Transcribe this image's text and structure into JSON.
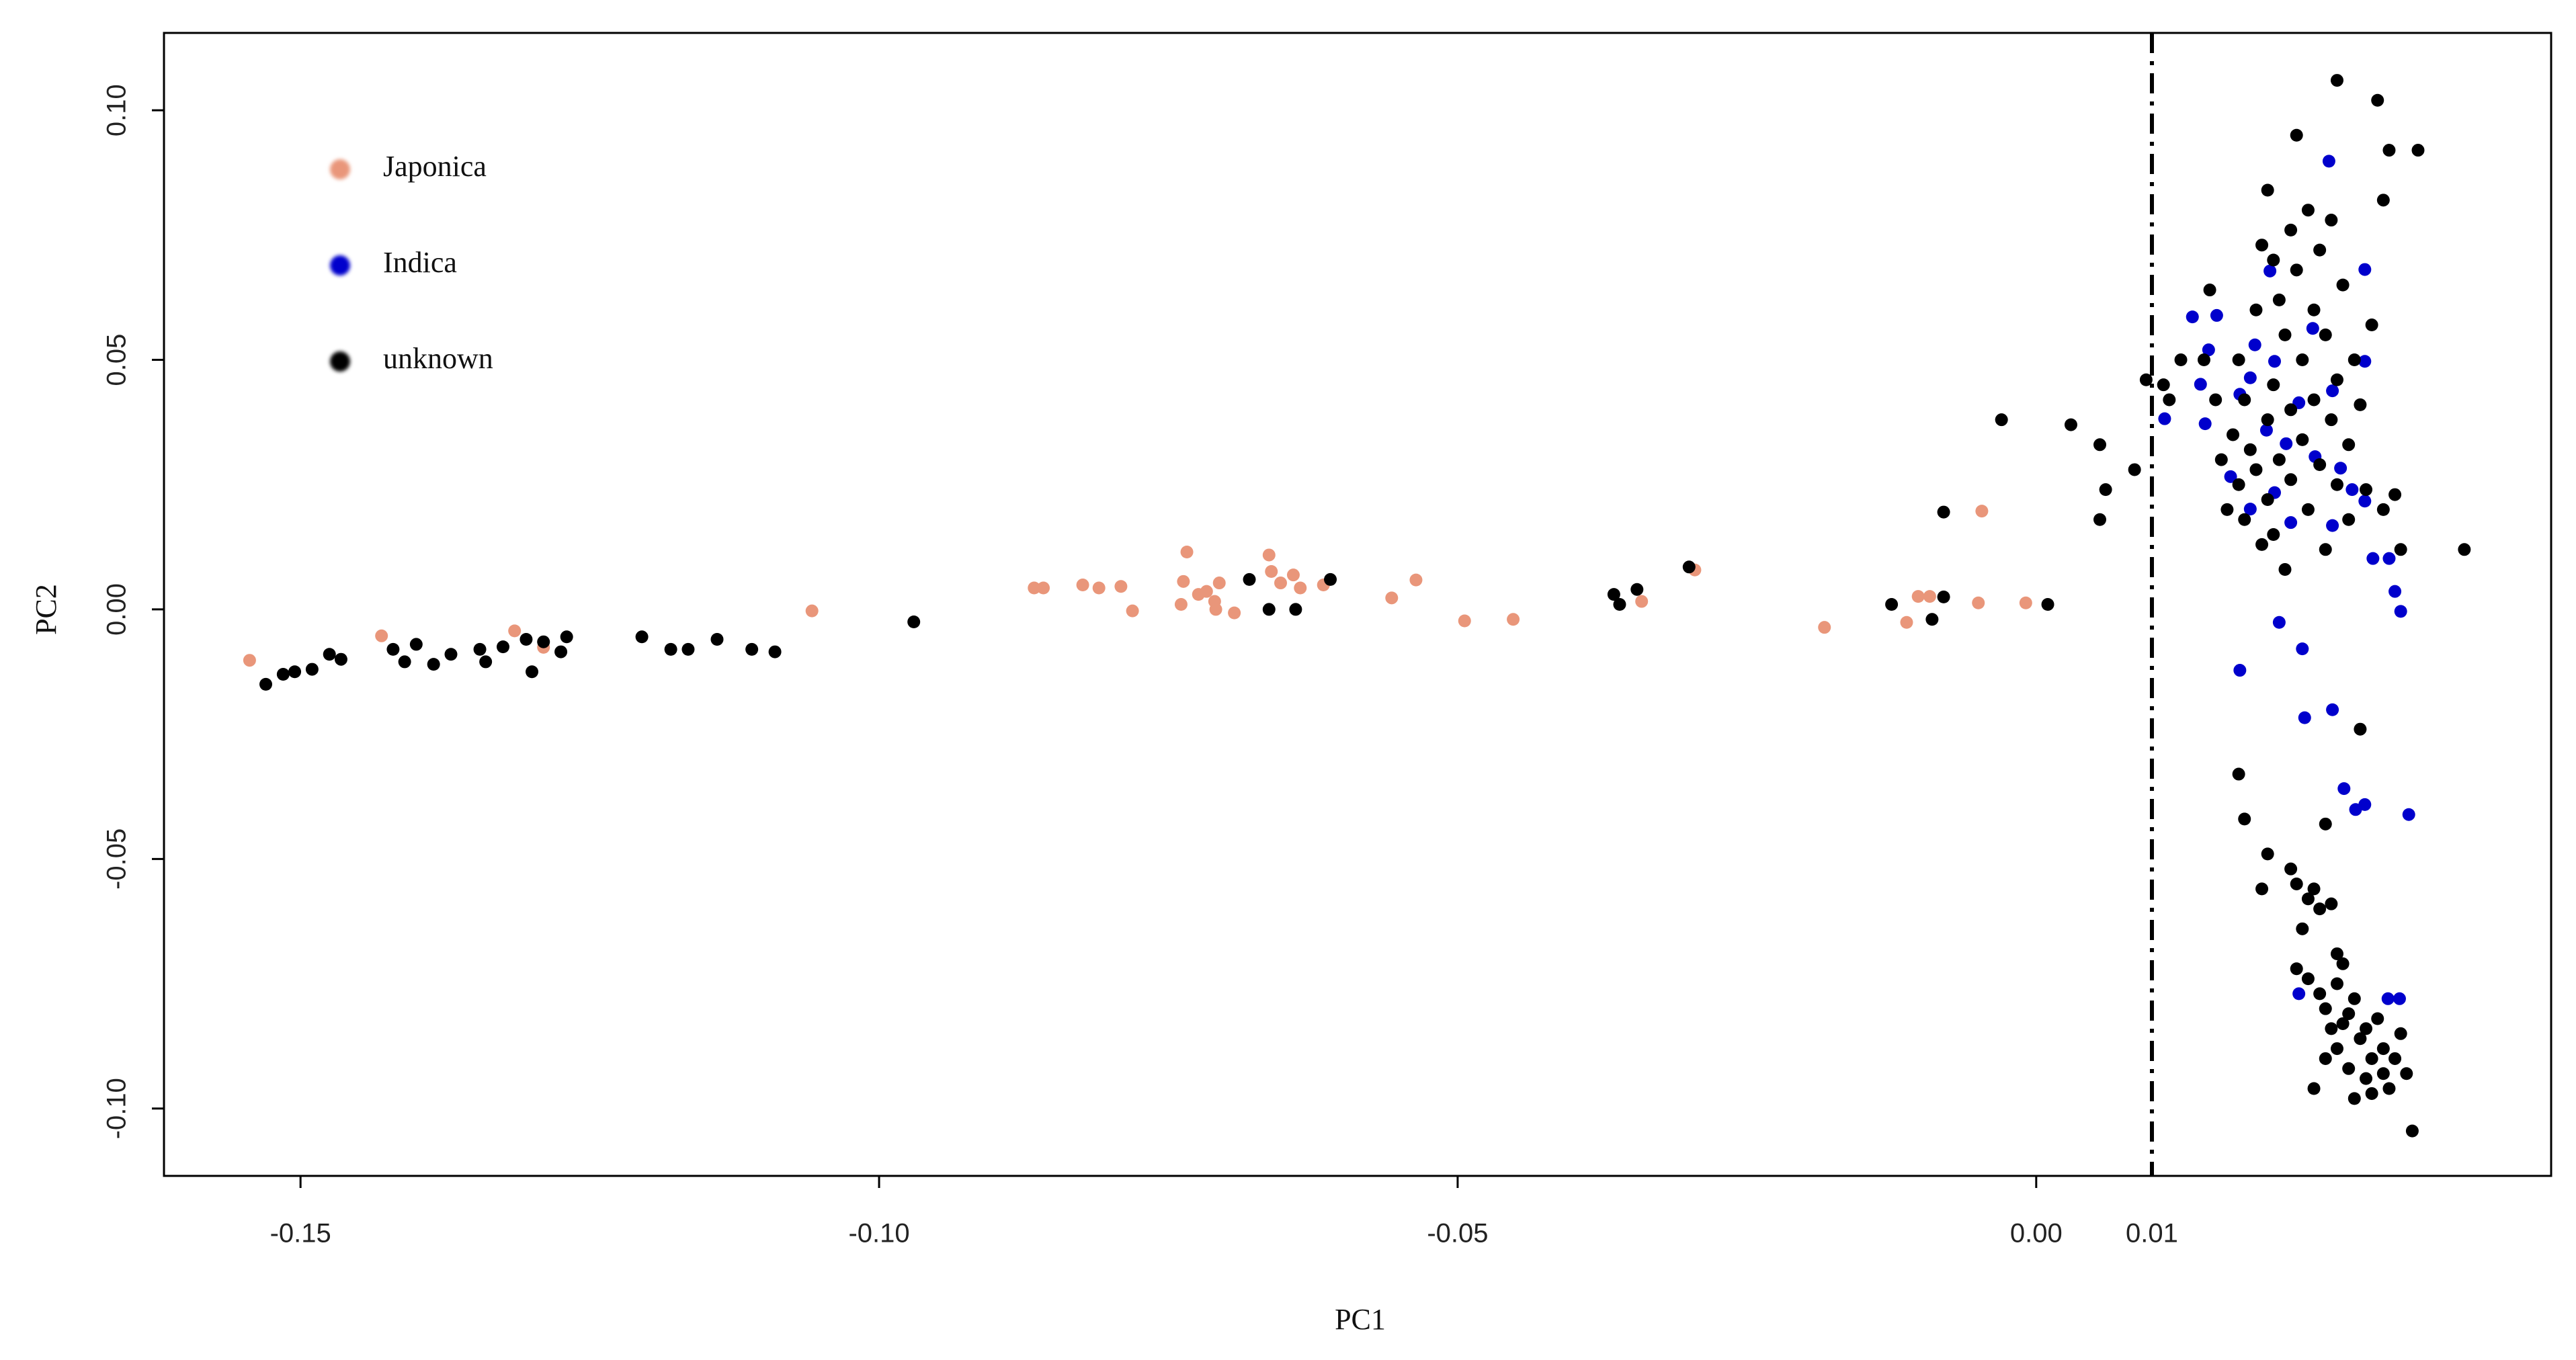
{
  "chart_data": {
    "type": "scatter",
    "x_label": "PC1",
    "y_label": "PC2",
    "xlim": [
      -0.1618,
      0.0445
    ],
    "ylim": [
      -0.1135,
      0.1155
    ],
    "xticks": [
      -0.15,
      {
        "value": -0.1,
        "label": "-0.10"
      },
      -0.05,
      {
        "value": 0,
        "label": "0.00"
      }
    ],
    "yticks": [
      {
        "value": 0.1,
        "label": "0.10"
      },
      0.05,
      {
        "value": 0,
        "label": "0.00"
      },
      -0.05,
      {
        "value": -0.1,
        "label": "-0.10"
      }
    ],
    "vline": 0.01,
    "legend": "top-left",
    "series": [
      {
        "name": "Japonica",
        "color": "#e9967a",
        "x": [
          -0.1544,
          -0.143,
          -0.1315,
          -0.129,
          -0.1058,
          -0.0866,
          -0.0858,
          -0.0824,
          -0.081,
          -0.0791,
          -0.0781,
          -0.0734,
          -0.0737,
          -0.0739,
          -0.0724,
          -0.0717,
          -0.071,
          -0.0706,
          -0.0709,
          -0.0693,
          -0.0663,
          -0.0661,
          -0.0653,
          -0.0642,
          -0.0636,
          -0.0616,
          -0.0557,
          -0.0536,
          -0.0494,
          -0.0452,
          -0.0341,
          -0.0295,
          -0.0183,
          -0.0112,
          -0.0102,
          -0.0092,
          -0.0047,
          -0.005,
          -0.0009
        ],
        "y": [
          -0.0102,
          -0.0053,
          -0.0043,
          -0.0076,
          -0.0003,
          0.0043,
          0.0043,
          0.0049,
          0.0043,
          0.0046,
          -0.0003,
          0.0115,
          0.0056,
          0.001,
          0.003,
          0.0036,
          0.0016,
          0.0053,
          0,
          -0.0007,
          0.0109,
          0.0076,
          0.0053,
          0.0069,
          0.0043,
          0.0049,
          0.0023,
          0.0059,
          -0.0023,
          -0.002,
          0.0016,
          0.0079,
          -0.0036,
          -0.0026,
          0.0026,
          0.0026,
          0.0197,
          0.0013,
          0.0013
        ]
      },
      {
        "name": "Indica",
        "color": "#0000cc",
        "x": [
          0.0135,
          0.0156,
          0.0149,
          0.0189,
          0.0206,
          0.0239,
          0.0253,
          0.0284,
          0.0202,
          0.0146,
          0.0111,
          0.0142,
          0.0176,
          0.0199,
          0.0216,
          0.0227,
          0.0241,
          0.0256,
          0.0263,
          0.0273,
          0.0284,
          0.0291,
          0.0168,
          0.0185,
          0.022,
          0.0256,
          0.0284,
          0.0305,
          0.031,
          0.0315,
          0.021,
          0.0176,
          0.023,
          0.0232,
          0.0256,
          0.0266,
          0.0284,
          0.0276,
          0.0322,
          0.0227,
          0.0304,
          0.0314,
          0.0185,
          0.0206
        ],
        "y": [
          0.0586,
          0.0589,
          0.052,
          0.053,
          0.0497,
          0.0563,
          0.0898,
          0.0681,
          0.0678,
          0.0372,
          0.0382,
          0.0451,
          0.0431,
          0.0359,
          0.0332,
          0.0414,
          0.0306,
          0.0438,
          0.0283,
          0.024,
          0.0497,
          0.0102,
          0.0266,
          0.0201,
          0.0174,
          0.0168,
          0.0217,
          0.0102,
          0.0036,
          -0.0004,
          -0.0026,
          -0.0122,
          -0.0079,
          -0.0217,
          -0.0201,
          -0.0359,
          -0.0391,
          -0.0401,
          -0.0411,
          -0.077,
          -0.078,
          -0.078,
          0.0464,
          0.0234
        ]
      },
      {
        "name": "unknown",
        "color": "#000000",
        "x": [
          -0.153,
          -0.1515,
          -0.1505,
          -0.149,
          -0.1475,
          -0.1465,
          -0.142,
          -0.141,
          -0.14,
          -0.1385,
          -0.137,
          -0.1345,
          -0.134,
          -0.1325,
          -0.1305,
          -0.13,
          -0.129,
          -0.1275,
          -0.127,
          -0.1205,
          -0.118,
          -0.1165,
          -0.114,
          -0.111,
          -0.109,
          -0.097,
          -0.068,
          -0.0663,
          -0.064,
          -0.061,
          -0.0365,
          -0.036,
          -0.0345,
          -0.03,
          -0.0125,
          -0.009,
          -0.008,
          -0.008,
          -0.003,
          0.001,
          0.003,
          0.0055,
          0.0055,
          0.006,
          0.0085,
          0.0095,
          0.011,
          0.0115,
          0.0125,
          0.0145,
          0.015,
          0.0155,
          0.016,
          0.0165,
          0.017,
          0.0175,
          0.0175,
          0.018,
          0.018,
          0.0185,
          0.019,
          0.019,
          0.0195,
          0.0195,
          0.02,
          0.02,
          0.02,
          0.0205,
          0.0205,
          0.0205,
          0.021,
          0.021,
          0.0215,
          0.0215,
          0.022,
          0.022,
          0.022,
          0.0225,
          0.0225,
          0.023,
          0.023,
          0.0235,
          0.0235,
          0.024,
          0.024,
          0.0245,
          0.0245,
          0.025,
          0.025,
          0.0255,
          0.0255,
          0.026,
          0.026,
          0.026,
          0.0265,
          0.027,
          0.027,
          0.0275,
          0.028,
          0.0285,
          0.029,
          0.0295,
          0.03,
          0.03,
          0.0305,
          0.031,
          0.0315,
          0.033,
          0.037,
          0.0175,
          0.018,
          0.02,
          0.0195,
          0.022,
          0.0225,
          0.023,
          0.0235,
          0.024,
          0.0245,
          0.025,
          0.0255,
          0.026,
          0.0225,
          0.0235,
          0.0245,
          0.025,
          0.026,
          0.0265,
          0.027,
          0.0275,
          0.028,
          0.0285,
          0.029,
          0.0295,
          0.03,
          0.0255,
          0.026,
          0.027,
          0.0275,
          0.0285,
          0.029,
          0.03,
          0.0305,
          0.031,
          0.0315,
          0.032,
          0.0325,
          0.028,
          0.0265,
          0.025,
          0.024
        ],
        "y": [
          -0.015,
          -0.013,
          -0.0125,
          -0.012,
          -0.009,
          -0.01,
          -0.008,
          -0.0105,
          -0.007,
          -0.011,
          -0.009,
          -0.008,
          -0.0105,
          -0.0075,
          -0.006,
          -0.0125,
          -0.0065,
          -0.0085,
          -0.0055,
          -0.0055,
          -0.008,
          -0.008,
          -0.006,
          -0.008,
          -0.0085,
          -0.0025,
          0.006,
          0,
          0,
          0.006,
          0.003,
          0.001,
          0.004,
          0.0085,
          0.001,
          -0.002,
          0.0025,
          0.0195,
          0.038,
          0.001,
          0.037,
          0.018,
          0.033,
          0.024,
          0.028,
          0.046,
          0.045,
          0.042,
          0.05,
          0.05,
          0.064,
          0.042,
          0.03,
          0.02,
          0.035,
          0.05,
          0.025,
          0.042,
          0.018,
          0.032,
          0.06,
          0.028,
          0.073,
          0.013,
          0.084,
          0.038,
          0.022,
          0.07,
          0.045,
          0.015,
          0.062,
          0.03,
          0.055,
          0.008,
          0.076,
          0.04,
          0.026,
          0.095,
          0.068,
          0.05,
          0.034,
          0.08,
          0.02,
          0.06,
          0.042,
          0.072,
          0.029,
          0.055,
          0.012,
          0.078,
          0.038,
          0.106,
          0.046,
          0.025,
          0.065,
          0.033,
          0.018,
          0.05,
          0.041,
          0.024,
          0.057,
          0.102,
          0.082,
          0.02,
          0.092,
          0.023,
          0.012,
          0.092,
          0.012,
          -0.033,
          -0.042,
          -0.049,
          -0.056,
          -0.052,
          -0.055,
          -0.064,
          -0.058,
          -0.056,
          -0.06,
          -0.043,
          -0.059,
          -0.069,
          -0.072,
          -0.074,
          -0.077,
          -0.08,
          -0.075,
          -0.083,
          -0.081,
          -0.078,
          -0.086,
          -0.084,
          -0.09,
          -0.082,
          -0.088,
          -0.084,
          -0.088,
          -0.092,
          -0.098,
          -0.094,
          -0.097,
          -0.093,
          -0.096,
          -0.09,
          -0.085,
          -0.093,
          -0.1045,
          -0.024,
          -0.071,
          -0.09,
          -0.096
        ]
      }
    ]
  }
}
